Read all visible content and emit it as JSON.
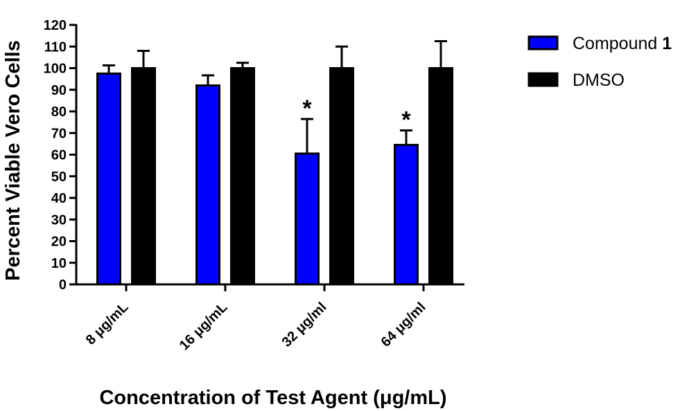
{
  "chart_data": {
    "type": "bar",
    "title": "",
    "xlabel": "Concentration of Test Agent (μg/mL)",
    "ylabel": "Percent Viable Vero  Cells",
    "ylim": [
      0,
      120
    ],
    "yticks": [
      0,
      10,
      20,
      30,
      40,
      50,
      60,
      70,
      80,
      90,
      100,
      110,
      120
    ],
    "categories": [
      "8 μg/mL",
      "16 μg/mL",
      "32 μg/ml",
      "64 μg/ml"
    ],
    "series": [
      {
        "name": "Compound 1",
        "name_text": "Compound ",
        "name_bold": "1",
        "color": "#0000ff",
        "values": [
          97.5,
          92,
          60.5,
          64.5
        ],
        "errors": [
          3.8,
          4.7,
          16,
          6.7
        ]
      },
      {
        "name": "DMSO",
        "name_text": "DMSO",
        "name_bold": "",
        "color": "#000000",
        "values": [
          100,
          100,
          100,
          100
        ],
        "errors": [
          8,
          2.5,
          10,
          12.5
        ]
      }
    ],
    "annotations": [
      {
        "category": "32 μg/ml",
        "series": "Compound 1",
        "text": "*"
      },
      {
        "category": "64 μg/ml",
        "series": "Compound 1",
        "text": "*"
      }
    ],
    "grid": false,
    "legend_position": "top-right"
  }
}
